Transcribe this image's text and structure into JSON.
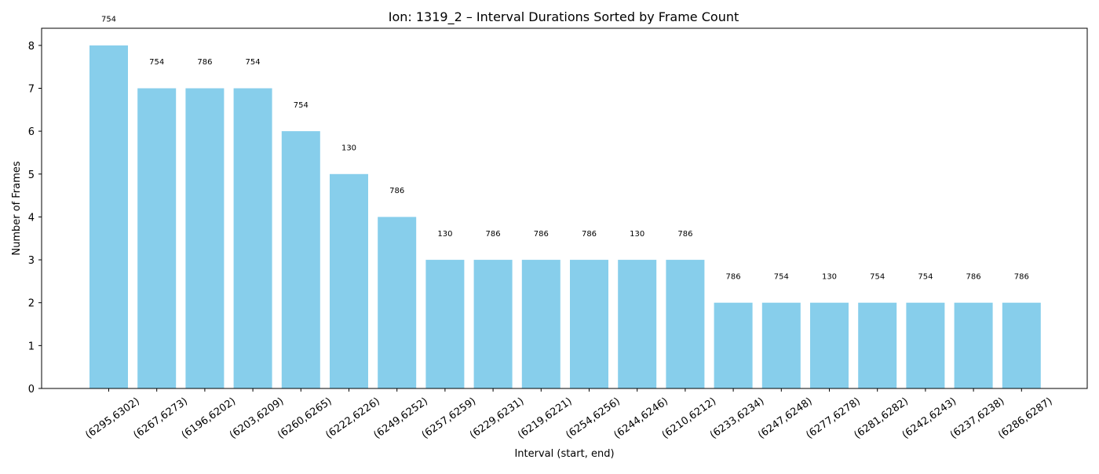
{
  "chart_data": {
    "type": "bar",
    "title": "Ion: 1319_2 – Interval Durations Sorted by Frame Count",
    "xlabel": "Interval (start, end)",
    "ylabel": "Number of Frames",
    "ylim": [
      0,
      8.4
    ],
    "yticks": [
      0,
      1,
      2,
      3,
      4,
      5,
      6,
      7,
      8
    ],
    "grid": false,
    "bar_color": "#87CEEB",
    "categories": [
      "(6295,6302)",
      "(6267,6273)",
      "(6196,6202)",
      "(6203,6209)",
      "(6260,6265)",
      "(6222,6226)",
      "(6249,6252)",
      "(6257,6259)",
      "(6229,6231)",
      "(6219,6221)",
      "(6254,6256)",
      "(6244,6246)",
      "(6210,6212)",
      "(6233,6234)",
      "(6247,6248)",
      "(6277,6278)",
      "(6281,6282)",
      "(6242,6243)",
      "(6237,6238)",
      "(6286,6287)"
    ],
    "values": [
      8,
      7,
      7,
      7,
      6,
      5,
      4,
      3,
      3,
      3,
      3,
      3,
      3,
      2,
      2,
      2,
      2,
      2,
      2,
      2
    ],
    "bar_labels": [
      "754",
      "754",
      "786",
      "754",
      "754",
      "130",
      "786",
      "130",
      "786",
      "786",
      "786",
      "130",
      "786",
      "786",
      "754",
      "130",
      "754",
      "754",
      "786",
      "786"
    ]
  }
}
